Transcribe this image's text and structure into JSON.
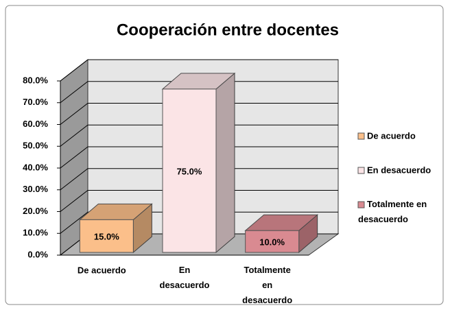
{
  "chart_data": {
    "type": "bar3d",
    "title": "Cooperación entre docentes",
    "categories": [
      "De acuerdo",
      "En desacuerdo",
      "Totalmente en desacuerdo"
    ],
    "values": [
      15,
      75,
      10
    ],
    "value_labels": [
      "15.0%",
      "75.0%",
      "10.0%"
    ],
    "colors": [
      "#fbbf8a",
      "#fbe4e6",
      "#d98a91"
    ],
    "ylim": [
      0,
      80
    ],
    "yticks": [
      {
        "value": 0,
        "label": "0.0%"
      },
      {
        "value": 10,
        "label": "10.0%"
      },
      {
        "value": 20,
        "label": "20.0%"
      },
      {
        "value": 30,
        "label": "30.0%"
      },
      {
        "value": 40,
        "label": "40.0%"
      },
      {
        "value": 50,
        "label": "50.0%"
      },
      {
        "value": 60,
        "label": "60.0%"
      },
      {
        "value": 70,
        "label": "70.0%"
      },
      {
        "value": 80,
        "label": "80.0%"
      }
    ],
    "grid": true,
    "legend": "right"
  }
}
